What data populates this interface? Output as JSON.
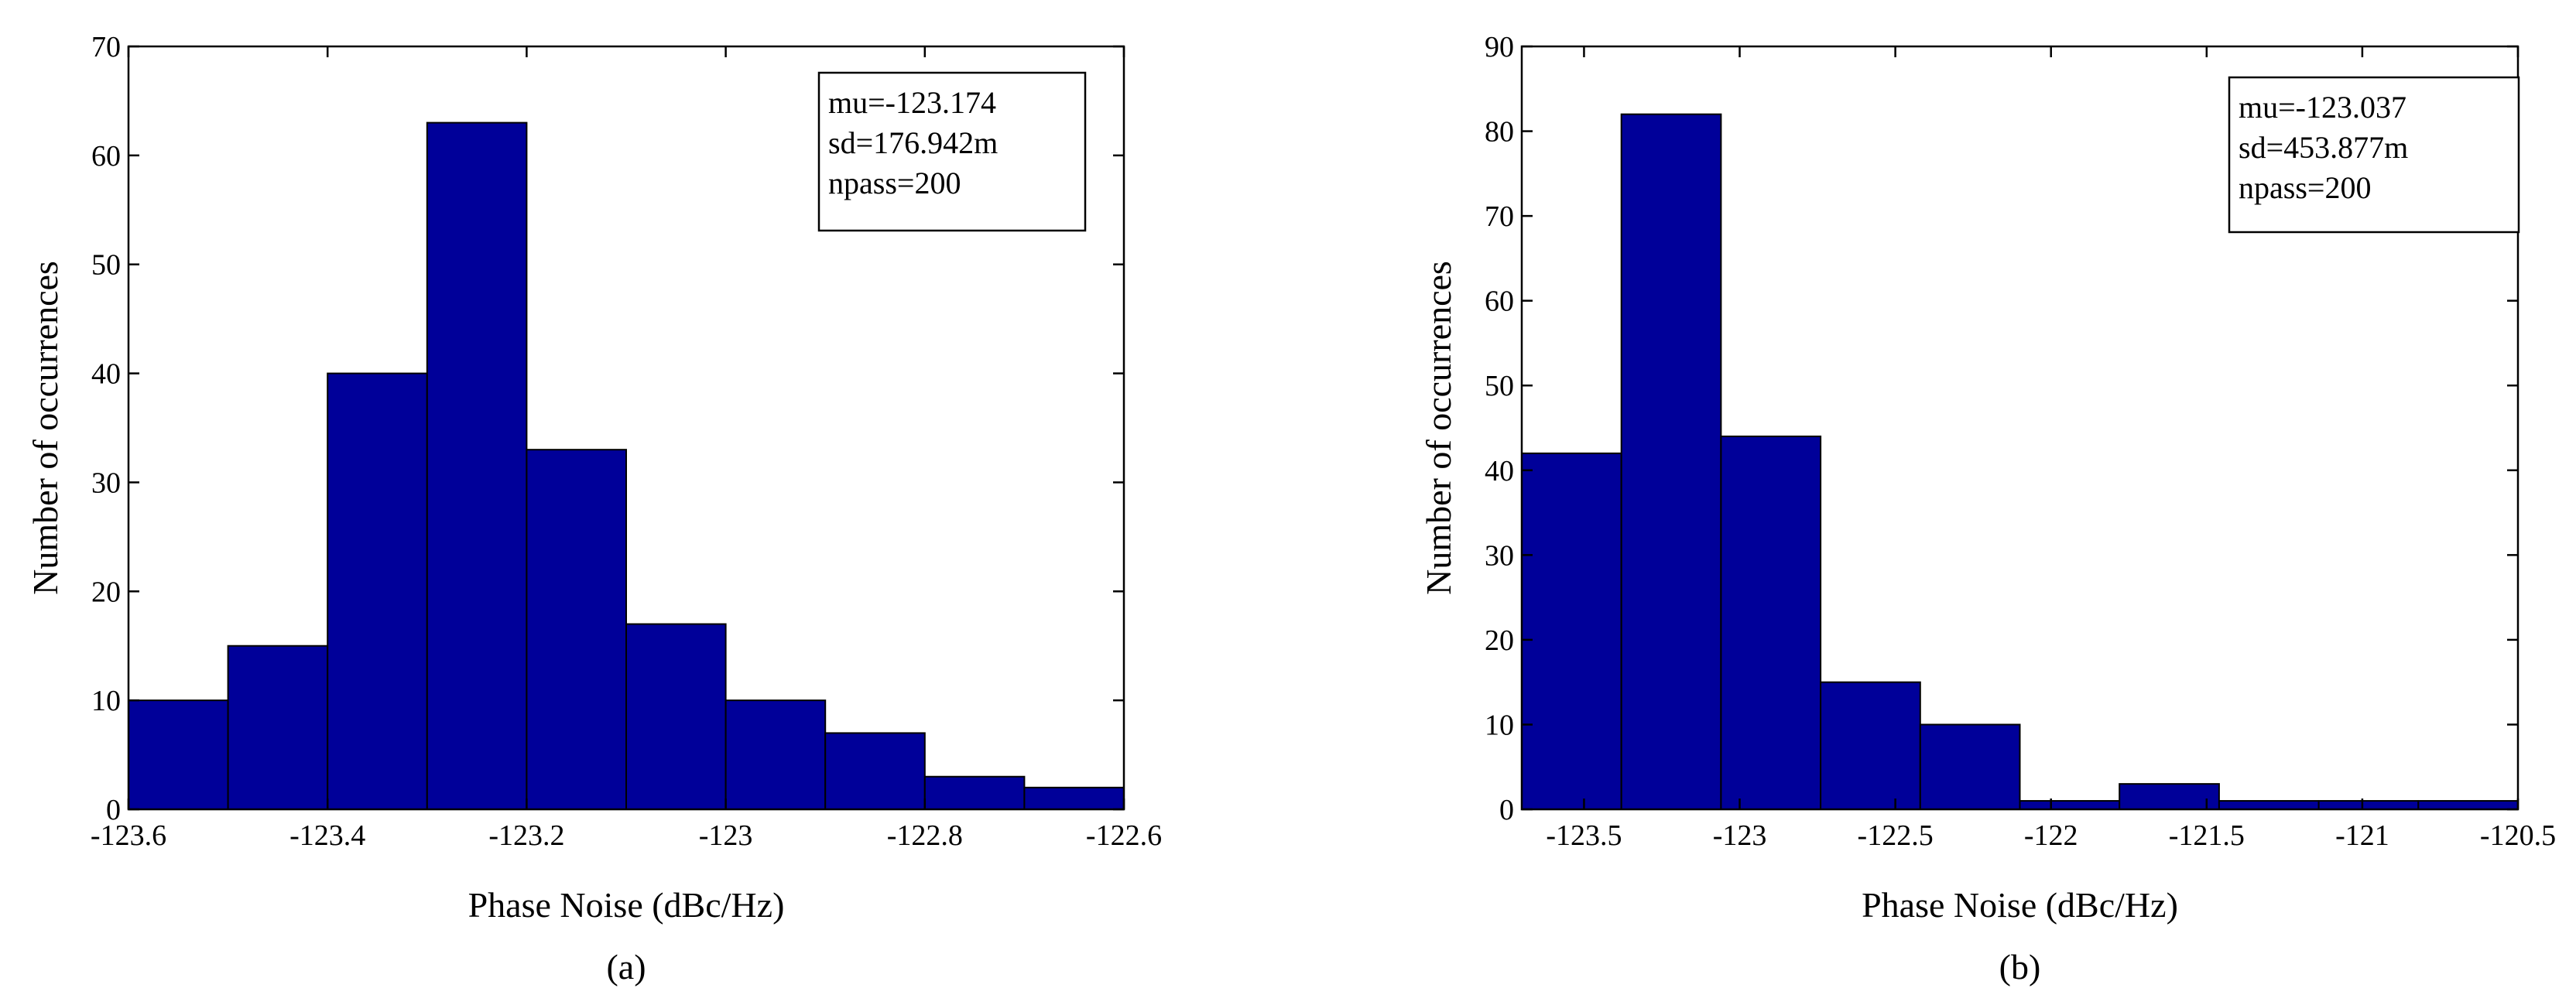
{
  "chart_data": [
    {
      "type": "bar",
      "panel": "a",
      "caption": "(a)",
      "xlabel": "Phase Noise (dBc/Hz)",
      "ylabel": "Number of occurrences",
      "xlim": [
        -123.6,
        -122.6
      ],
      "ylim": [
        0,
        70
      ],
      "xticks": [
        -123.6,
        -123.4,
        -123.2,
        -123,
        -122.8,
        -122.6
      ],
      "xtick_labels": [
        "-123.6",
        "-123.4",
        "-123.2",
        "-123",
        "-122.8",
        "-122.6"
      ],
      "yticks": [
        0,
        10,
        20,
        30,
        40,
        50,
        60,
        70
      ],
      "ytick_labels": [
        "0",
        "10",
        "20",
        "30",
        "40",
        "50",
        "60",
        "70"
      ],
      "bin_edges": [
        -123.6,
        -123.5,
        -123.4,
        -123.3,
        -123.2,
        -123.1,
        -123.0,
        -122.9,
        -122.8,
        -122.7,
        -122.6
      ],
      "values": [
        10,
        15,
        40,
        63,
        33,
        17,
        10,
        7,
        3,
        2
      ],
      "annotation": [
        "mu=-123.174",
        "sd=176.942m",
        "npass=200"
      ],
      "legend_position": "top-right",
      "bar_color": "#000099",
      "grid": false
    },
    {
      "type": "bar",
      "panel": "b",
      "caption": "(b)",
      "xlabel": "Phase Noise (dBc/Hz)",
      "ylabel": "Number of occurrences",
      "xlim": [
        -123.7,
        -120.5
      ],
      "ylim": [
        0,
        90
      ],
      "xticks": [
        -123.5,
        -123,
        -122.5,
        -122,
        -121.5,
        -121,
        -120.5
      ],
      "xtick_labels": [
        "-123.5",
        "-123",
        "-122.5",
        "-122",
        "-121.5",
        "-121",
        "-120.5"
      ],
      "yticks": [
        0,
        10,
        20,
        30,
        40,
        50,
        60,
        70,
        80,
        90
      ],
      "ytick_labels": [
        "0",
        "10",
        "20",
        "30",
        "40",
        "50",
        "60",
        "70",
        "80",
        "90"
      ],
      "bin_edges": [
        -123.7,
        -123.38,
        -123.06,
        -122.74,
        -122.42,
        -122.1,
        -121.78,
        -121.46,
        -121.14,
        -120.82,
        -120.5
      ],
      "values": [
        42,
        82,
        44,
        15,
        10,
        1,
        3,
        1,
        1,
        1
      ],
      "annotation": [
        "mu=-123.037",
        "sd=453.877m",
        "npass=200"
      ],
      "legend_position": "top-right",
      "bar_color": "#000099",
      "grid": false
    }
  ]
}
